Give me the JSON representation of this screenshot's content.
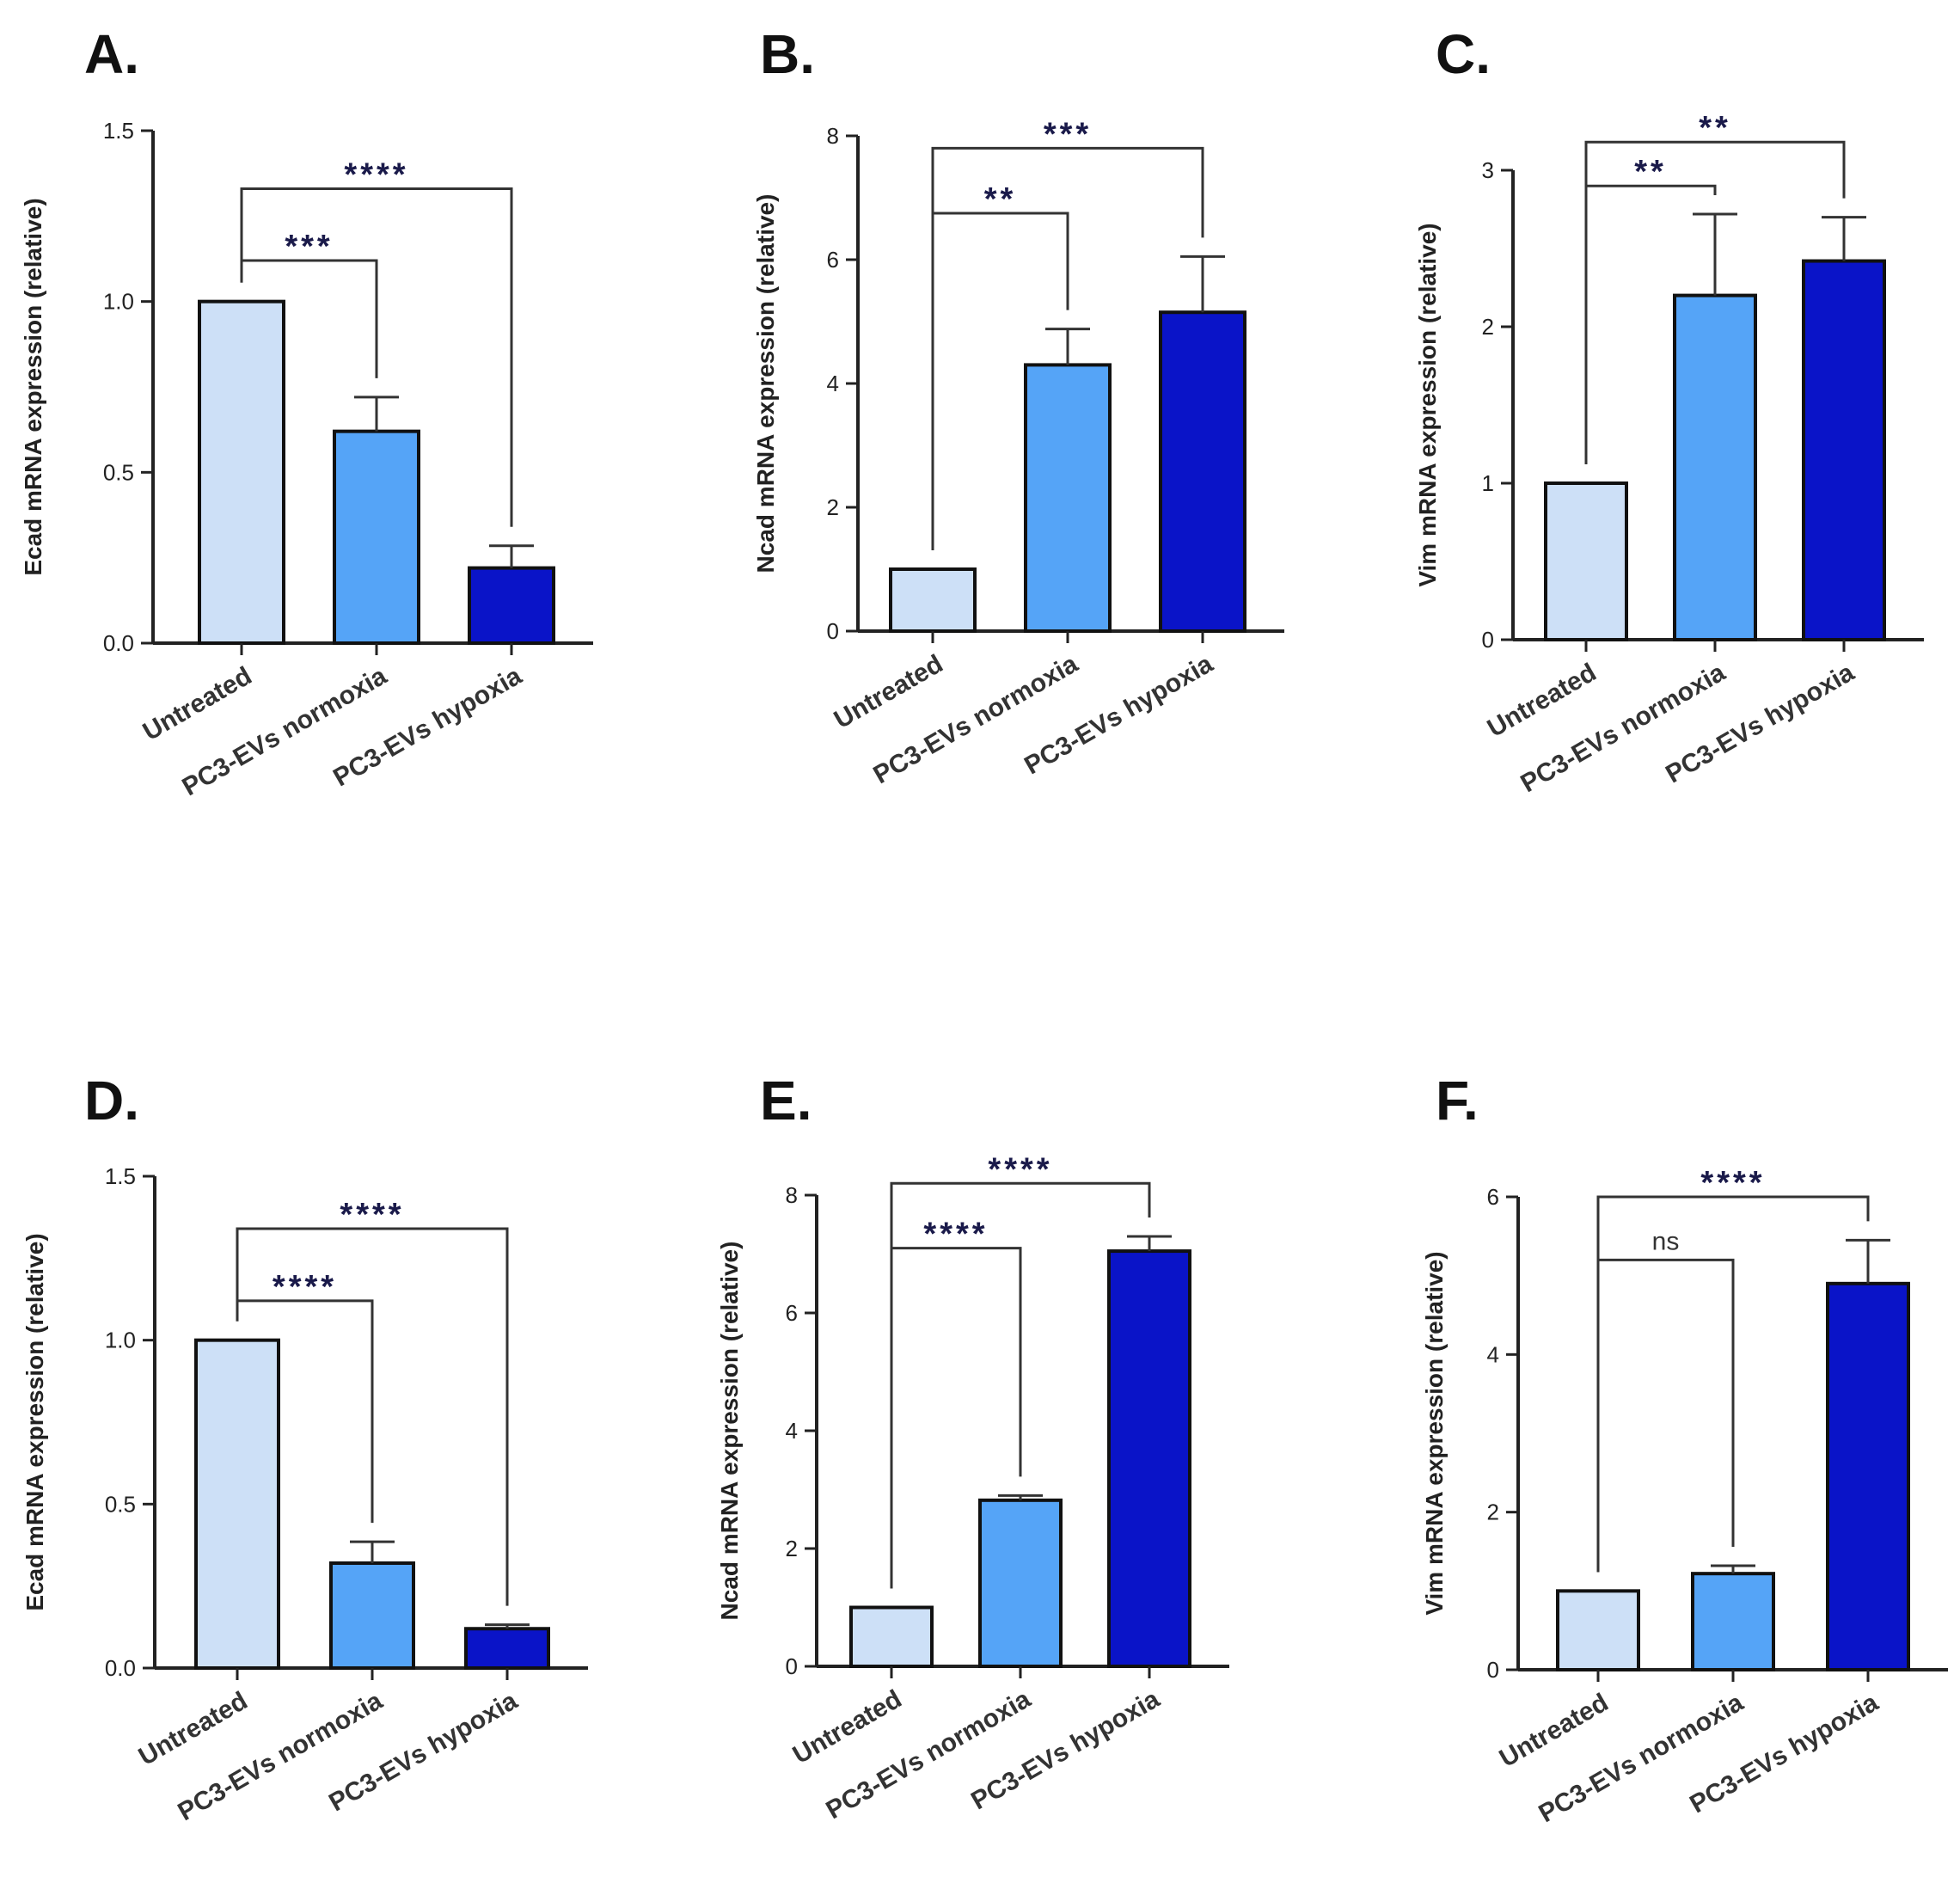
{
  "chart_data": [
    {
      "panel": "A.",
      "type": "bar",
      "categories": [
        "Untreated",
        "PC3-EVs normoxia",
        "PC3-EVs hypoxia"
      ],
      "values": [
        1.0,
        0.62,
        0.22
      ],
      "errors": [
        0.0,
        0.1,
        0.065
      ],
      "ylabel": "Ecad mRNA expression (relative)",
      "ylim": [
        0,
        1.5
      ],
      "yticks": [
        "0.0",
        "0.5",
        "1.0",
        "1.5"
      ],
      "colors": [
        "#cde0f7",
        "#55a4f7",
        "#0a14c8"
      ],
      "comparisons": [
        {
          "from": 0,
          "to": 1,
          "label": "***",
          "y": 1.12
        },
        {
          "from": 0,
          "to": 2,
          "label": "****",
          "y": 1.33
        }
      ]
    },
    {
      "panel": "B.",
      "type": "bar",
      "categories": [
        "Untreated",
        "PC3-EVs normoxia",
        "PC3-EVs hypoxia"
      ],
      "values": [
        1.0,
        4.3,
        5.15
      ],
      "errors": [
        0.0,
        0.58,
        0.9
      ],
      "ylabel": "Ncad mRNA expression (relative)",
      "ylim": [
        0,
        8
      ],
      "yticks": [
        "0",
        "2",
        "4",
        "6",
        "8"
      ],
      "colors": [
        "#cde0f7",
        "#55a4f7",
        "#0a14c8"
      ],
      "comparisons": [
        {
          "from": 0,
          "to": 1,
          "label": "**",
          "y": 6.75
        },
        {
          "from": 0,
          "to": 2,
          "label": "***",
          "y": 7.8
        }
      ]
    },
    {
      "panel": "C.",
      "type": "bar",
      "categories": [
        "Untreated",
        "PC3-EVs normoxia",
        "PC3-EVs hypoxia"
      ],
      "values": [
        1.0,
        2.2,
        2.42
      ],
      "errors": [
        0.0,
        0.52,
        0.28
      ],
      "ylabel": "Vim mRNA expression (relative)",
      "ylim": [
        0,
        3
      ],
      "yticks": [
        "0",
        "1",
        "2",
        "3"
      ],
      "colors": [
        "#cde0f7",
        "#55a4f7",
        "#0a14c8"
      ],
      "comparisons": [
        {
          "from": 0,
          "to": 1,
          "label": "**",
          "y": 2.9
        },
        {
          "from": 0,
          "to": 2,
          "label": "**",
          "y": 3.18
        }
      ]
    },
    {
      "panel": "D.",
      "type": "bar",
      "categories": [
        "Untreated",
        "PC3-EVs normoxia",
        "PC3-EVs hypoxia"
      ],
      "values": [
        1.0,
        0.32,
        0.12
      ],
      "errors": [
        0.0,
        0.065,
        0.012
      ],
      "ylabel": "Ecad mRNA expression (relative)",
      "ylim": [
        0,
        1.5
      ],
      "yticks": [
        "0.0",
        "0.5",
        "1.0",
        "1.5"
      ],
      "colors": [
        "#cde0f7",
        "#55a4f7",
        "#0a14c8"
      ],
      "comparisons": [
        {
          "from": 0,
          "to": 1,
          "label": "****",
          "y": 1.12
        },
        {
          "from": 0,
          "to": 2,
          "label": "****",
          "y": 1.34
        }
      ]
    },
    {
      "panel": "E.",
      "type": "bar",
      "categories": [
        "Untreated",
        "PC3-EVs normoxia",
        "PC3-EVs hypoxia"
      ],
      "values": [
        1.0,
        2.82,
        7.05
      ],
      "errors": [
        0.0,
        0.08,
        0.25
      ],
      "ylabel": "Ncad mRNA expression (relative)",
      "ylim": [
        0,
        8
      ],
      "yticks": [
        "0",
        "2",
        "4",
        "6",
        "8"
      ],
      "colors": [
        "#cde0f7",
        "#55a4f7",
        "#0a14c8"
      ],
      "comparisons": [
        {
          "from": 0,
          "to": 1,
          "label": "****",
          "y": 7.1
        },
        {
          "from": 0,
          "to": 2,
          "label": "****",
          "y": 8.2
        }
      ]
    },
    {
      "panel": "F.",
      "type": "bar",
      "categories": [
        "Untreated",
        "PC3-EVs normoxia",
        "PC3-EVs hypoxia"
      ],
      "values": [
        1.0,
        1.22,
        4.9
      ],
      "errors": [
        0.0,
        0.1,
        0.55
      ],
      "ylabel": "Vim mRNA expression (relative)",
      "ylim": [
        0,
        6
      ],
      "yticks": [
        "0",
        "2",
        "4",
        "6"
      ],
      "colors": [
        "#cde0f7",
        "#55a4f7",
        "#0a14c8"
      ],
      "comparisons": [
        {
          "from": 0,
          "to": 1,
          "label": "ns",
          "y": 5.2
        },
        {
          "from": 0,
          "to": 2,
          "label": "****",
          "y": 6.0
        }
      ]
    }
  ]
}
